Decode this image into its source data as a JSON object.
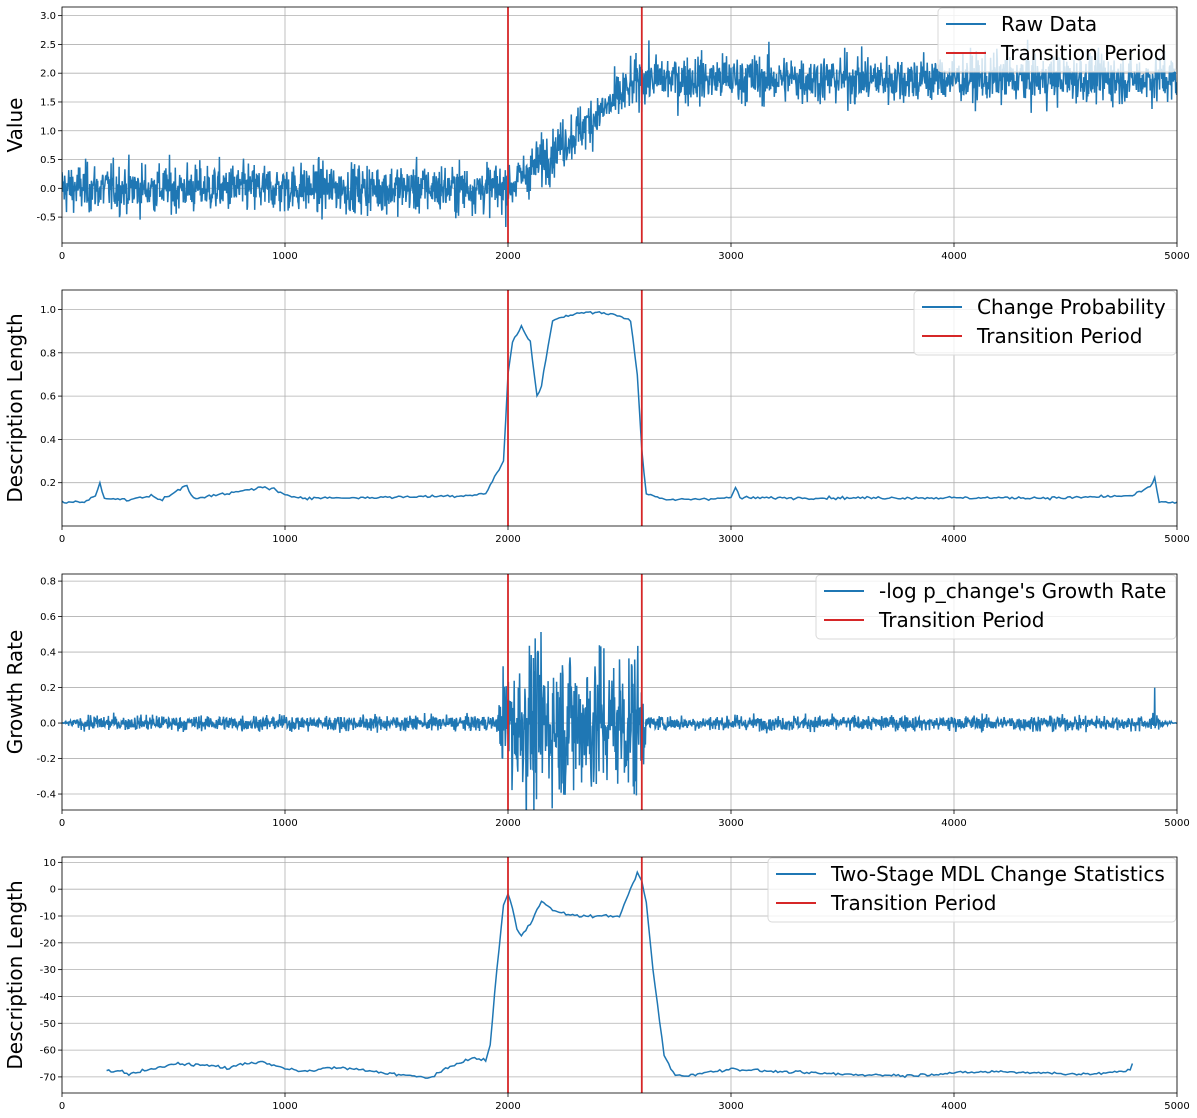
{
  "colors": {
    "series": "#1f77b4",
    "transition": "#d62728",
    "grid": "#b0b0b0",
    "axes": "#000000"
  },
  "chart_data": [
    {
      "type": "line",
      "ylabel": "Value",
      "xlim": [
        0,
        5000
      ],
      "ylim": [
        -0.95,
        3.15
      ],
      "xticks": [
        0,
        1000,
        2000,
        3000,
        4000,
        5000
      ],
      "yticks": [
        -0.5,
        0.0,
        0.5,
        1.0,
        1.5,
        2.0,
        2.5,
        3.0
      ],
      "ytick_labels": [
        "-0.5",
        "0.0",
        "0.5",
        "1.0",
        "1.5",
        "2.0",
        "2.5",
        "3.0"
      ],
      "grid": true,
      "legend_position": "top-right",
      "transition_period": [
        2000,
        2600
      ],
      "series": [
        {
          "name": "Raw Data",
          "kind": "noisy-step",
          "x": [
            0,
            2000,
            2600,
            5000
          ],
          "y": [
            0.0,
            0.0,
            1.9,
            1.9
          ],
          "noise": 0.3
        },
        {
          "name": "Transition Period",
          "kind": "vlines",
          "x": [
            2000,
            2600
          ]
        }
      ]
    },
    {
      "type": "line",
      "ylabel": "Description Length",
      "xlim": [
        0,
        5000
      ],
      "ylim": [
        0.0,
        1.09
      ],
      "xticks": [
        0,
        1000,
        2000,
        3000,
        4000,
        5000
      ],
      "yticks": [
        0.2,
        0.4,
        0.6,
        0.8,
        1.0
      ],
      "ytick_labels": [
        "0.2",
        "0.4",
        "0.6",
        "0.8",
        "1.0"
      ],
      "grid": true,
      "legend_position": "top-right",
      "transition_period": [
        2000,
        2600
      ],
      "series": [
        {
          "name": "Change Probability",
          "kind": "line",
          "x": [
            0,
            100,
            150,
            170,
            190,
            300,
            400,
            450,
            560,
            580,
            600,
            750,
            900,
            950,
            1000,
            1100,
            1300,
            1800,
            1900,
            1980,
            2000,
            2020,
            2060,
            2100,
            2130,
            2150,
            2200,
            2300,
            2400,
            2500,
            2550,
            2580,
            2600,
            2620,
            2700,
            3000,
            3020,
            3040,
            3500,
            4000,
            4500,
            4800,
            4880,
            4900,
            4920,
            5000
          ],
          "y": [
            0.11,
            0.11,
            0.14,
            0.2,
            0.13,
            0.12,
            0.14,
            0.12,
            0.19,
            0.14,
            0.13,
            0.15,
            0.18,
            0.17,
            0.14,
            0.13,
            0.13,
            0.14,
            0.15,
            0.3,
            0.7,
            0.85,
            0.92,
            0.85,
            0.6,
            0.65,
            0.95,
            0.98,
            0.99,
            0.97,
            0.95,
            0.7,
            0.35,
            0.15,
            0.12,
            0.13,
            0.18,
            0.13,
            0.13,
            0.13,
            0.13,
            0.14,
            0.18,
            0.22,
            0.11,
            0.11
          ]
        },
        {
          "name": "Transition Period",
          "kind": "vlines",
          "x": [
            2000,
            2600
          ]
        }
      ]
    },
    {
      "type": "line",
      "ylabel": "Growth Rate",
      "xlim": [
        0,
        5000
      ],
      "ylim": [
        -0.49,
        0.84
      ],
      "xticks": [
        0,
        1000,
        2000,
        3000,
        4000,
        5000
      ],
      "yticks": [
        -0.4,
        -0.2,
        0.0,
        0.2,
        0.4,
        0.6,
        0.8
      ],
      "ytick_labels": [
        "-0.4",
        "-0.2",
        "0.0",
        "0.2",
        "0.4",
        "0.6",
        "0.8"
      ],
      "grid": true,
      "legend_position": "top-right",
      "transition_period": [
        2000,
        2600
      ],
      "series": [
        {
          "name": "-log p_change's Growth Rate",
          "kind": "noisy-burst",
          "x": [
            0,
            100,
            1950,
            2000,
            2600,
            2620,
            4900,
            5000
          ],
          "amplitude": [
            0.0,
            0.03,
            0.03,
            0.3,
            0.3,
            0.03,
            0.03,
            0.0
          ],
          "spike": {
            "x": 4900,
            "y": 0.2
          }
        },
        {
          "name": "Transition Period",
          "kind": "vlines",
          "x": [
            2000,
            2600
          ]
        }
      ]
    },
    {
      "type": "line",
      "ylabel": "Description Length",
      "xlim": [
        0,
        5000
      ],
      "ylim": [
        -76,
        12
      ],
      "xticks": [
        0,
        1000,
        2000,
        3000,
        4000,
        5000
      ],
      "yticks": [
        -70,
        -60,
        -50,
        -40,
        -30,
        -20,
        -10,
        0,
        10
      ],
      "ytick_labels": [
        "-70",
        "-60",
        "-50",
        "-40",
        "-30",
        "-20",
        "-10",
        "0",
        "10"
      ],
      "grid": true,
      "legend_position": "top-right",
      "transition_period": [
        2000,
        2600
      ],
      "series": [
        {
          "name": "Two-Stage MDL Change Statistics",
          "kind": "line",
          "x": [
            200,
            280,
            300,
            350,
            400,
            450,
            500,
            600,
            700,
            750,
            800,
            900,
            1000,
            1100,
            1200,
            1300,
            1400,
            1500,
            1600,
            1650,
            1700,
            1750,
            1800,
            1850,
            1900,
            1920,
            1950,
            1980,
            2000,
            2020,
            2040,
            2060,
            2100,
            2150,
            2200,
            2300,
            2400,
            2500,
            2550,
            2580,
            2600,
            2620,
            2650,
            2700,
            2750,
            2800,
            3000,
            3200,
            3500,
            3800,
            4000,
            4200,
            4400,
            4600,
            4700,
            4790,
            4800
          ],
          "y": [
            -67.5,
            -68,
            -69,
            -68,
            -67,
            -66.5,
            -65,
            -65.5,
            -66,
            -67,
            -65,
            -64.5,
            -67,
            -68,
            -66.5,
            -67,
            -68,
            -69,
            -70,
            -70.3,
            -68,
            -66,
            -64,
            -63,
            -64,
            -58,
            -30,
            -6,
            -1.5,
            -7,
            -15,
            -17.5,
            -13,
            -4,
            -8,
            -10,
            -10,
            -10,
            0,
            6,
            3,
            -5,
            -30,
            -62,
            -69.5,
            -69.5,
            -67,
            -68,
            -69,
            -69.5,
            -68.5,
            -68,
            -68.5,
            -69,
            -68.5,
            -67.5,
            -65
          ]
        },
        {
          "name": "Transition Period",
          "kind": "vlines",
          "x": [
            2000,
            2600
          ]
        }
      ]
    }
  ]
}
